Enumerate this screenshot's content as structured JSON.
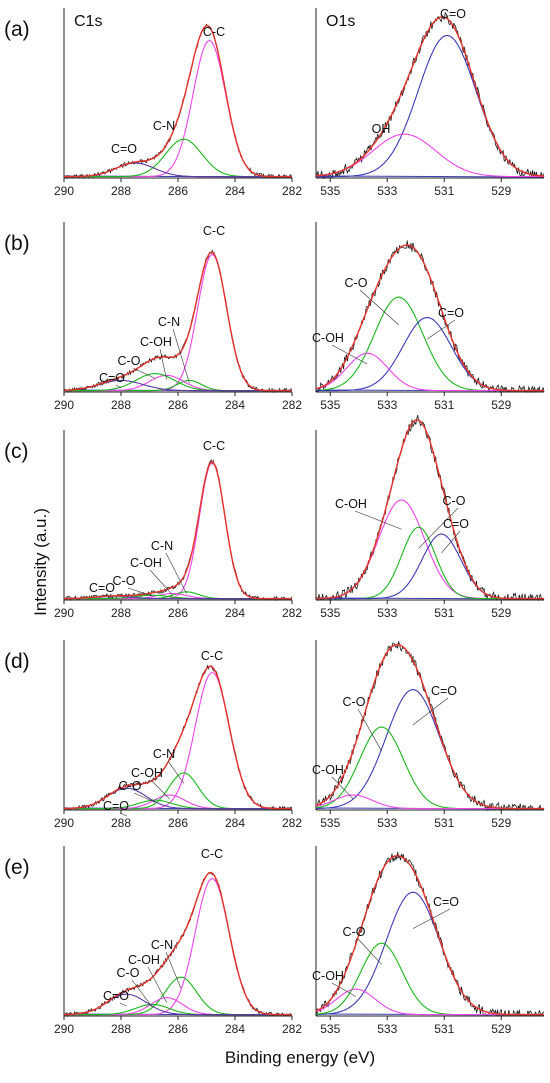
{
  "figure": {
    "ylabel": "Intensity (a.u.)",
    "xlabel": "Binding energy (eV)",
    "headers": [
      "C1s",
      "O1s"
    ]
  },
  "colors": {
    "raw": "#1a1a1a",
    "envelope": "#e8332b",
    "C-C": "#ee44ee",
    "C-N": "#19b819",
    "C=O": "#5a3aa6",
    "C-OH": "#ee44ee",
    "C-O": "#19b819",
    "O_C=O": "#3b3bb8",
    "OH": "#ee44ee",
    "baseline": "#3b3bb8"
  },
  "chart_data": [
    {
      "type": "line",
      "panel": "(a)",
      "region": "C1s",
      "title": "C1s",
      "xlim": [
        290,
        282
      ],
      "xticks": [
        290,
        288,
        286,
        284,
        282
      ],
      "series": [
        {
          "name": "C-C",
          "center": 284.9,
          "fwhm": 1.35,
          "height": 0.8
        },
        {
          "name": "C-N",
          "center": 285.8,
          "fwhm": 1.5,
          "height": 0.22
        },
        {
          "name": "C=O",
          "center": 287.5,
          "fwhm": 1.6,
          "height": 0.08
        }
      ]
    },
    {
      "type": "line",
      "panel": "(a)",
      "region": "O1s",
      "title": "O1s",
      "xlim": [
        535.5,
        527.5
      ],
      "xticks": [
        535,
        533,
        531,
        529
      ],
      "series": [
        {
          "name": "C=O",
          "center": 530.9,
          "fwhm": 2.4,
          "height": 0.83
        },
        {
          "name": "OH",
          "center": 532.4,
          "fwhm": 2.6,
          "height": 0.25
        }
      ]
    },
    {
      "type": "line",
      "panel": "(b)",
      "region": "C1s",
      "xlim": [
        290,
        282
      ],
      "xticks": [
        290,
        288,
        286,
        284,
        282
      ],
      "series": [
        {
          "name": "C-C",
          "center": 284.8,
          "fwhm": 1.2,
          "height": 0.8
        },
        {
          "name": "C-N",
          "center": 285.6,
          "fwhm": 1.0,
          "height": 0.06
        },
        {
          "name": "C-OH",
          "center": 286.4,
          "fwhm": 1.4,
          "height": 0.09
        },
        {
          "name": "C-O",
          "center": 286.8,
          "fwhm": 1.6,
          "height": 0.1
        },
        {
          "name": "C=O",
          "center": 288.0,
          "fwhm": 1.8,
          "height": 0.06
        }
      ]
    },
    {
      "type": "line",
      "panel": "(b)",
      "region": "O1s",
      "xlim": [
        535.5,
        527.5
      ],
      "xticks": [
        535,
        533,
        531,
        529
      ],
      "series": [
        {
          "name": "C-O",
          "center": 532.6,
          "fwhm": 2.0,
          "height": 0.55
        },
        {
          "name": "C=O",
          "center": 531.6,
          "fwhm": 2.0,
          "height": 0.43
        },
        {
          "name": "C-OH",
          "center": 533.7,
          "fwhm": 1.7,
          "height": 0.22
        }
      ]
    },
    {
      "type": "line",
      "panel": "(c)",
      "region": "C1s",
      "xlim": [
        290,
        282
      ],
      "xticks": [
        290,
        288,
        286,
        284,
        282
      ],
      "series": [
        {
          "name": "C-C",
          "center": 284.8,
          "fwhm": 1.05,
          "height": 0.8
        },
        {
          "name": "C-N",
          "center": 285.7,
          "fwhm": 1.0,
          "height": 0.04
        },
        {
          "name": "C-OH",
          "center": 286.2,
          "fwhm": 1.2,
          "height": 0.03
        },
        {
          "name": "C-O",
          "center": 286.9,
          "fwhm": 1.4,
          "height": 0.02
        },
        {
          "name": "C=O",
          "center": 288.3,
          "fwhm": 1.5,
          "height": 0.015
        }
      ]
    },
    {
      "type": "line",
      "panel": "(c)",
      "region": "O1s",
      "xlim": [
        535.5,
        527.5
      ],
      "xticks": [
        535,
        533,
        531,
        529
      ],
      "series": [
        {
          "name": "C-OH",
          "center": 532.5,
          "fwhm": 1.9,
          "height": 0.58
        },
        {
          "name": "C-O",
          "center": 531.9,
          "fwhm": 1.4,
          "height": 0.42
        },
        {
          "name": "C=O",
          "center": 531.1,
          "fwhm": 1.6,
          "height": 0.38
        }
      ]
    },
    {
      "type": "line",
      "panel": "(d)",
      "region": "C1s",
      "xlim": [
        290,
        282
      ],
      "xticks": [
        290,
        288,
        286,
        284,
        282
      ],
      "series": [
        {
          "name": "C-C",
          "center": 284.8,
          "fwhm": 1.4,
          "height": 0.8
        },
        {
          "name": "C-N",
          "center": 285.8,
          "fwhm": 1.2,
          "height": 0.21
        },
        {
          "name": "C-OH",
          "center": 286.3,
          "fwhm": 1.3,
          "height": 0.08
        },
        {
          "name": "C-O",
          "center": 286.8,
          "fwhm": 1.4,
          "height": 0.05
        },
        {
          "name": "C=O",
          "center": 287.8,
          "fwhm": 1.6,
          "height": 0.12
        }
      ]
    },
    {
      "type": "line",
      "panel": "(d)",
      "region": "O1s",
      "xlim": [
        535.5,
        527.5
      ],
      "xticks": [
        535,
        533,
        531,
        529
      ],
      "series": [
        {
          "name": "C=O",
          "center": 532.1,
          "fwhm": 2.2,
          "height": 0.7
        },
        {
          "name": "C-O",
          "center": 533.2,
          "fwhm": 1.8,
          "height": 0.48
        },
        {
          "name": "C-OH",
          "center": 534.2,
          "fwhm": 1.6,
          "height": 0.08
        }
      ]
    },
    {
      "type": "line",
      "panel": "(e)",
      "region": "C1s",
      "xlim": [
        290,
        282
      ],
      "xticks": [
        290,
        288,
        286,
        284,
        282
      ],
      "series": [
        {
          "name": "C-C",
          "center": 284.8,
          "fwhm": 1.4,
          "height": 0.8
        },
        {
          "name": "C-N",
          "center": 285.9,
          "fwhm": 1.3,
          "height": 0.22
        },
        {
          "name": "C-OH",
          "center": 286.4,
          "fwhm": 1.3,
          "height": 0.1
        },
        {
          "name": "C-O",
          "center": 286.9,
          "fwhm": 1.4,
          "height": 0.06
        },
        {
          "name": "C=O",
          "center": 287.8,
          "fwhm": 1.6,
          "height": 0.12
        }
      ]
    },
    {
      "type": "line",
      "panel": "(e)",
      "region": "O1s",
      "xlim": [
        535.5,
        527.5
      ],
      "xticks": [
        535,
        533,
        531,
        529
      ],
      "series": [
        {
          "name": "C=O",
          "center": 532.1,
          "fwhm": 2.2,
          "height": 0.72
        },
        {
          "name": "C-O",
          "center": 533.2,
          "fwhm": 1.7,
          "height": 0.42
        },
        {
          "name": "C-OH",
          "center": 534.1,
          "fwhm": 1.6,
          "height": 0.15
        }
      ]
    }
  ]
}
